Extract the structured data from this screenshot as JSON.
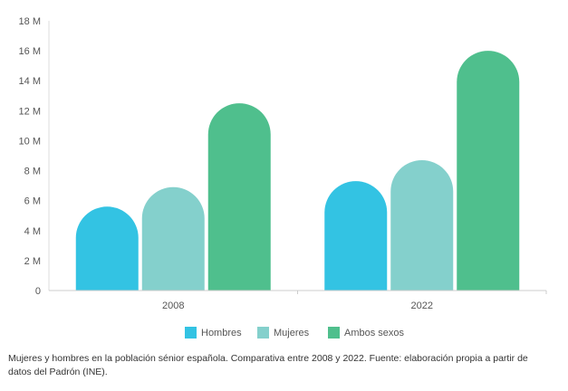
{
  "chart_data": {
    "type": "bar",
    "categories": [
      "2008",
      "2022"
    ],
    "series": [
      {
        "name": "Hombres",
        "color": "#33c3e3",
        "values": [
          5.6,
          7.3
        ]
      },
      {
        "name": "Mujeres",
        "color": "#84d0cc",
        "values": [
          6.9,
          8.7
        ]
      },
      {
        "name": "Ambos sexos",
        "color": "#4fbf8d",
        "values": [
          12.5,
          16.0
        ]
      }
    ],
    "ylim": [
      0,
      18
    ],
    "yticks": [
      0,
      2,
      4,
      6,
      8,
      10,
      12,
      14,
      16,
      18
    ],
    "ytick_labels": [
      "0",
      "2 M",
      "4 M",
      "6 M",
      "8 M",
      "10 M",
      "12 M",
      "14 M",
      "16 M",
      "18 M"
    ],
    "grid": false,
    "legend_position": "bottom-center"
  },
  "caption": "Mujeres y hombres en la población sénior española. Comparativa entre 2008 y 2022. Fuente: elaboración propia a partir de datos del Padrón (INE)."
}
